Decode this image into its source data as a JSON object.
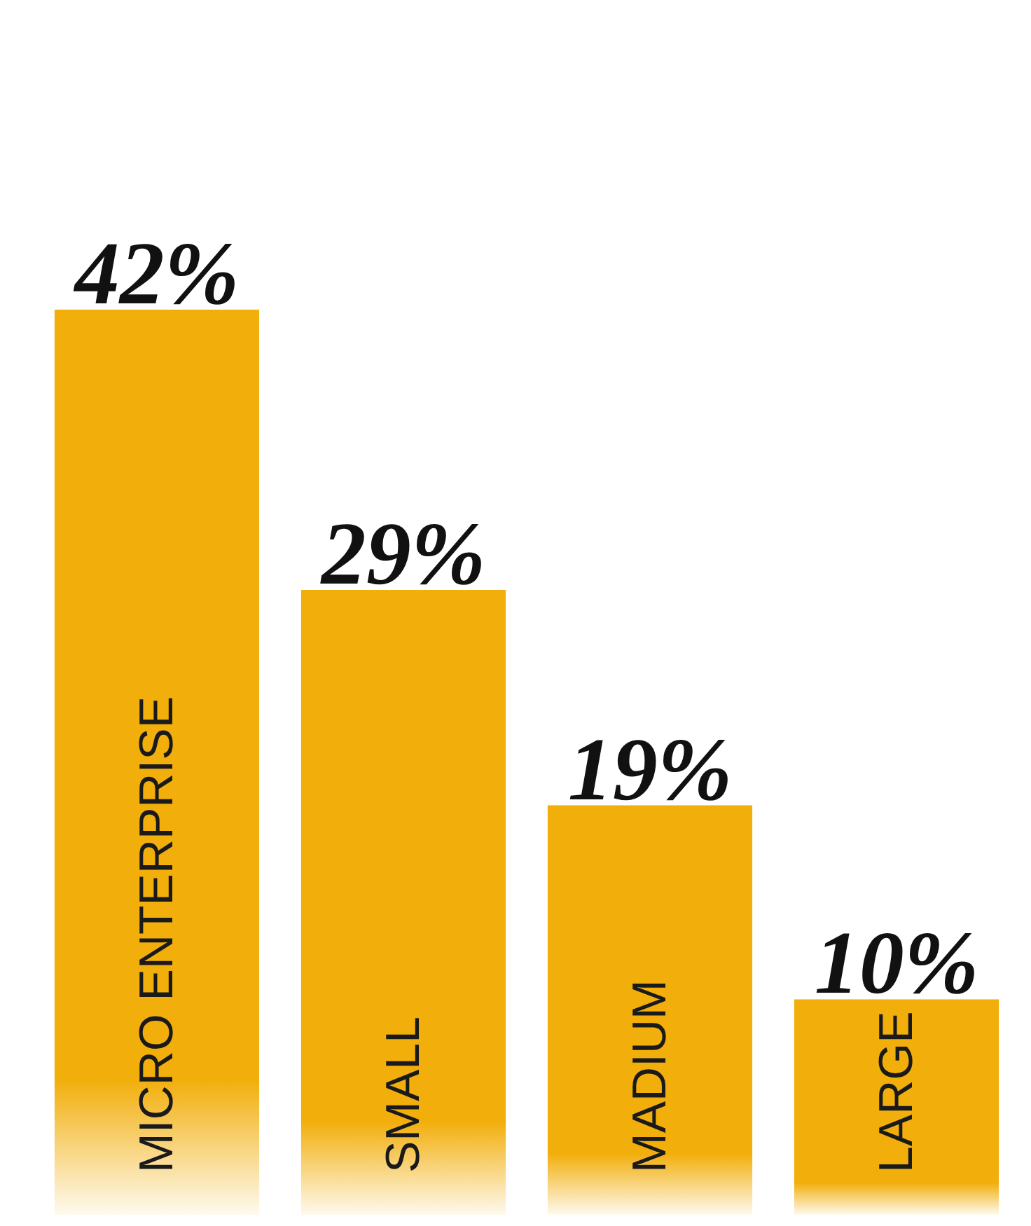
{
  "chart_data": {
    "type": "bar",
    "categories": [
      "MICRO ENTERPRISE",
      "SMALL",
      "MADIUM",
      "LARGE"
    ],
    "values": [
      42,
      29,
      19,
      10
    ],
    "value_labels": [
      "42%",
      "29%",
      "19%",
      "10%"
    ],
    "color": "#f2ae0a"
  }
}
